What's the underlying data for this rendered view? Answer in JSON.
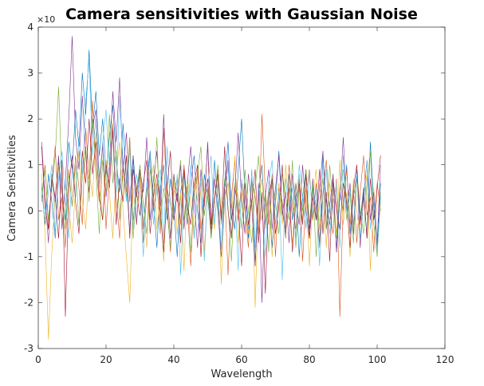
{
  "chart_data": {
    "type": "line",
    "title": "Camera sensitivities with Gaussian Noise",
    "xlabel": "Wavelength",
    "ylabel": "Camera Sensitivities",
    "y_exponent_label": "×10",
    "xlim": [
      0,
      120
    ],
    "xticks": [
      0,
      20,
      40,
      60,
      80,
      100,
      120
    ],
    "ylim": [
      -3,
      4
    ],
    "yticks": [
      -3,
      -2,
      -1,
      0,
      1,
      2,
      3,
      4
    ],
    "grid": false,
    "x": [
      1,
      2,
      3,
      4,
      5,
      6,
      7,
      8,
      9,
      10,
      11,
      12,
      13,
      14,
      15,
      16,
      17,
      18,
      19,
      20,
      21,
      22,
      23,
      24,
      25,
      26,
      27,
      28,
      29,
      30,
      31,
      32,
      33,
      34,
      35,
      36,
      37,
      38,
      39,
      40,
      41,
      42,
      43,
      44,
      45,
      46,
      47,
      48,
      49,
      50,
      51,
      52,
      53,
      54,
      55,
      56,
      57,
      58,
      59,
      60,
      61,
      62,
      63,
      64,
      65,
      66,
      67,
      68,
      69,
      70,
      71,
      72,
      73,
      74,
      75,
      76,
      77,
      78,
      79,
      80,
      81,
      82,
      83,
      84,
      85,
      86,
      87,
      88,
      89,
      90,
      91,
      92,
      93,
      94,
      95,
      96,
      97,
      98,
      99,
      100,
      101
    ],
    "series": [
      {
        "color": "#0072bd",
        "values": [
          0.5,
          -0.3,
          0.8,
          0.2,
          -0.6,
          1.1,
          0.4,
          -0.2,
          1.5,
          0.9,
          2.2,
          1.4,
          3.0,
          2.1,
          3.5,
          1.8,
          2.6,
          1.2,
          2.0,
          0.8,
          1.6,
          2.3,
          1.1,
          0.4,
          1.9,
          0.7,
          -0.5,
          1.2,
          0.3,
          0.9,
          -0.4,
          0.6,
          1.3,
          0.2,
          -0.8,
          0.5,
          1.0,
          -0.2,
          0.7,
          0.1,
          -1.0,
          0.4,
          0.9,
          -0.3,
          0.6,
          1.2,
          0.0,
          -0.7,
          0.8,
          0.3,
          -0.5,
          1.1,
          0.2,
          -0.9,
          0.6,
          1.5,
          0.1,
          -0.4,
          0.9,
          2.0,
          0.3,
          -0.6,
          0.7,
          -1.2,
          0.4,
          1.0,
          -0.3,
          0.5,
          -0.8,
          0.2,
          1.3,
          0.0,
          -0.5,
          0.8,
          -0.2,
          0.6,
          -1.0,
          0.3,
          0.9,
          -0.4,
          0.5,
          0.1,
          -0.7,
          1.2,
          0.2,
          -0.3,
          0.7,
          -0.9,
          0.4,
          0.0,
          1.0,
          -0.5,
          0.3,
          0.8,
          -0.2,
          0.5,
          -0.6,
          1.5,
          0.1,
          -0.8,
          0.6
        ]
      },
      {
        "color": "#d95319",
        "values": [
          0.2,
          1.0,
          -0.4,
          0.6,
          1.4,
          -0.2,
          0.3,
          -0.8,
          0.9,
          0.1,
          1.2,
          0.5,
          -0.3,
          1.8,
          0.7,
          2.4,
          1.0,
          0.2,
          1.5,
          -0.4,
          0.8,
          1.9,
          0.3,
          -0.6,
          1.1,
          0.4,
          1.6,
          -0.2,
          0.5,
          0.9,
          -0.7,
          0.3,
          1.2,
          0.0,
          0.6,
          -0.5,
          1.8,
          0.2,
          -0.9,
          0.4,
          0.7,
          -0.3,
          1.0,
          0.1,
          -1.2,
          0.5,
          0.8,
          -0.4,
          0.3,
          1.4,
          -0.6,
          0.2,
          0.9,
          -0.1,
          0.5,
          -1.4,
          0.3,
          1.1,
          -0.2,
          0.6,
          0.0,
          -0.8,
          0.7,
          0.3,
          -0.5,
          2.1,
          0.4,
          -0.3,
          0.8,
          -1.0,
          0.5,
          0.2,
          -0.6,
          1.0,
          0.1,
          -0.4,
          0.7,
          -1.1,
          0.3,
          0.9,
          -0.2,
          0.6,
          -0.8,
          0.4,
          1.1,
          0.0,
          -0.5,
          0.7,
          -2.3,
          0.2,
          0.9,
          -0.3,
          0.5,
          -0.7,
          0.4,
          1.2,
          -0.1,
          0.3,
          -0.9,
          0.6,
          0.0
        ]
      },
      {
        "color": "#edb120",
        "values": [
          0.8,
          -0.5,
          -2.8,
          -0.9,
          0.4,
          1.0,
          -0.3,
          0.6,
          0.1,
          -0.7,
          0.5,
          1.3,
          0.2,
          -0.4,
          0.9,
          0.3,
          1.7,
          0.6,
          -0.2,
          1.1,
          0.4,
          -0.6,
          0.8,
          1.5,
          0.0,
          -1.0,
          -2.0,
          0.5,
          -0.3,
          0.7,
          0.2,
          -0.8,
          0.6,
          1.0,
          -0.4,
          0.3,
          -1.1,
          0.5,
          0.1,
          0.8,
          -0.5,
          0.4,
          -1.3,
          0.7,
          0.2,
          -0.6,
          1.0,
          0.3,
          -0.9,
          0.5,
          0.1,
          -0.4,
          0.8,
          -1.6,
          0.3,
          0.6,
          -0.2,
          1.2,
          -0.7,
          0.4,
          0.0,
          -0.5,
          0.9,
          -2.1,
          0.3,
          0.7,
          -0.4,
          0.5,
          -1.0,
          0.2,
          0.6,
          -0.3,
          1.0,
          0.1,
          -0.7,
          0.4,
          0.8,
          -0.2,
          0.5,
          -1.2,
          0.3,
          0.9,
          -0.4,
          0.2,
          -0.8,
          0.6,
          0.1,
          -0.5,
          1.1,
          -0.3,
          0.4,
          -1.0,
          0.7,
          0.0,
          -0.6,
          0.3,
          0.8,
          -1.3,
          0.5,
          -0.9,
          0.2
        ]
      },
      {
        "color": "#7e2f8e",
        "values": [
          1.5,
          0.3,
          -0.7,
          0.8,
          0.2,
          1.2,
          -0.4,
          0.6,
          2.0,
          3.8,
          1.6,
          0.9,
          2.5,
          1.2,
          0.4,
          1.8,
          2.2,
          0.7,
          1.4,
          0.3,
          1.0,
          2.6,
          1.5,
          2.9,
          0.8,
          1.7,
          0.2,
          1.2,
          -0.3,
          0.9,
          0.4,
          1.6,
          -0.2,
          0.7,
          1.3,
          0.1,
          2.1,
          0.5,
          -0.6,
          0.8,
          0.2,
          1.0,
          -0.4,
          0.6,
          1.4,
          0.3,
          -0.8,
          0.9,
          0.1,
          1.5,
          -0.3,
          0.7,
          0.0,
          -1.0,
          0.5,
          1.1,
          -0.2,
          0.4,
          1.7,
          0.2,
          -0.5,
          0.8,
          0.1,
          -1.2,
          0.6,
          -2.0,
          0.3,
          0.9,
          -0.4,
          0.5,
          1.2,
          -0.1,
          0.4,
          -0.7,
          0.8,
          0.2,
          -0.3,
          1.0,
          0.0,
          -0.6,
          0.7,
          -0.2,
          0.5,
          1.3,
          -0.4,
          0.1,
          0.8,
          -0.9,
          0.3,
          1.6,
          0.0,
          0.6,
          -0.5,
          0.9,
          -0.8,
          0.3,
          1.1,
          -0.2,
          0.4,
          -0.7,
          1.0
        ]
      },
      {
        "color": "#77ac30",
        "values": [
          0.3,
          0.9,
          -0.2,
          0.5,
          1.2,
          2.7,
          0.6,
          -0.4,
          0.8,
          0.1,
          1.0,
          -0.3,
          0.7,
          1.4,
          0.2,
          2.0,
          0.9,
          -0.5,
          1.1,
          0.4,
          2.1,
          0.6,
          1.3,
          -0.2,
          0.8,
          0.3,
          1.5,
          -0.6,
          0.4,
          1.0,
          0.1,
          -0.5,
          0.9,
          0.3,
          1.6,
          -0.3,
          0.5,
          0.0,
          -0.8,
          0.7,
          0.4,
          1.1,
          -0.2,
          0.6,
          -0.9,
          0.3,
          0.8,
          1.4,
          -0.1,
          0.5,
          -0.6,
          0.2,
          1.0,
          -0.3,
          0.7,
          0.1,
          -1.1,
          0.6,
          0.3,
          -0.4,
          0.9,
          0.0,
          -0.7,
          0.5,
          1.2,
          -0.2,
          0.4,
          -0.9,
          0.7,
          0.2,
          -0.5,
          0.8,
          0.3,
          -0.2,
          1.1,
          -0.8,
          0.5,
          0.0,
          0.9,
          -0.3,
          0.6,
          -1.0,
          0.2,
          0.7,
          -0.4,
          1.0,
          0.1,
          -0.6,
          0.5,
          0.9,
          -0.2,
          0.4,
          -0.7,
          0.8,
          0.0,
          -0.5,
          0.6,
          1.3,
          -0.3,
          -1.0,
          0.4
        ]
      },
      {
        "color": "#4dbeee",
        "values": [
          0.6,
          -0.2,
          0.4,
          1.0,
          -0.5,
          0.7,
          1.3,
          0.2,
          -0.6,
          0.9,
          0.3,
          1.6,
          0.8,
          2.4,
          3.3,
          1.2,
          2.0,
          0.6,
          1.5,
          2.2,
          0.9,
          1.7,
          0.4,
          2.5,
          1.1,
          0.2,
          1.4,
          -0.4,
          0.8,
          0.3,
          -1.0,
          0.6,
          1.2,
          -0.3,
          0.5,
          0.9,
          -0.7,
          1.4,
          0.1,
          -0.2,
          0.8,
          -1.4,
          0.4,
          0.0,
          1.0,
          -0.6,
          0.3,
          0.7,
          -1.1,
          0.5,
          1.2,
          -0.3,
          0.6,
          -0.9,
          0.2,
          1.0,
          -0.5,
          0.4,
          -1.3,
          0.7,
          0.1,
          -0.4,
          0.9,
          -0.8,
          0.5,
          0.2,
          -1.0,
          0.6,
          1.1,
          -0.3,
          0.4,
          -1.5,
          0.7,
          0.0,
          0.5,
          -0.6,
          1.0,
          0.3,
          -0.4,
          0.8,
          -0.1,
          0.5,
          -1.2,
          0.3,
          0.9,
          -0.5,
          0.2,
          0.6,
          -0.8,
          1.2,
          0.0,
          0.5,
          -0.3,
          0.8,
          -0.6,
          0.2,
          1.1,
          -0.4,
          0.3,
          -0.9,
          0.3
        ]
      },
      {
        "color": "#a2142f",
        "values": [
          1.4,
          0.1,
          -0.4,
          0.7,
          0.3,
          -0.6,
          1.1,
          -2.3,
          0.5,
          1.2,
          0.2,
          -0.5,
          1.3,
          0.6,
          2.0,
          0.8,
          1.5,
          0.3,
          -0.2,
          1.0,
          0.5,
          1.8,
          -0.3,
          0.7,
          0.2,
          1.2,
          -0.6,
          0.9,
          0.4,
          -0.1,
          0.6,
          1.1,
          -0.5,
          0.3,
          0.8,
          0.0,
          -0.9,
          0.5,
          1.3,
          -0.2,
          0.4,
          -0.7,
          0.9,
          0.1,
          -0.3,
          0.6,
          1.0,
          -1.0,
          0.2,
          0.7,
          -0.4,
          0.3,
          0.8,
          -0.2,
          1.4,
          0.0,
          -0.6,
          0.5,
          0.1,
          -1.2,
          0.6,
          -0.3,
          0.2,
          0.9,
          -0.7,
          0.4,
          -1.8,
          0.3,
          0.7,
          -0.5,
          0.1,
          1.0,
          -0.4,
          0.5,
          -0.9,
          0.2,
          0.6,
          -0.3,
          0.8,
          -0.6,
          0.3,
          -0.2,
          0.9,
          -0.5,
          0.4,
          -1.1,
          0.7,
          0.0,
          -0.4,
          0.6,
          0.2,
          -0.8,
          0.5,
          1.0,
          -0.3,
          0.4,
          -0.6,
          0.7,
          -0.2,
          0.5,
          1.2
        ]
      }
    ]
  }
}
